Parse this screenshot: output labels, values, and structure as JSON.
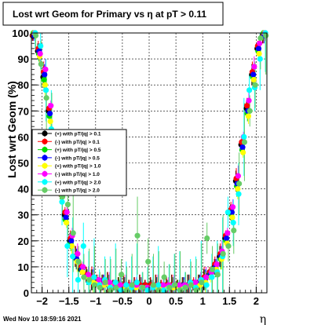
{
  "timestamp": "Wed Nov 10 18:59:16 2021",
  "chart_data": {
    "type": "scatter",
    "title": "Lost wrt Geom for Primary vs   η at pT > 0.11",
    "xlabel": "η",
    "ylabel": "Lost wrt Geom (%)",
    "xlim": [
      -2.2,
      2.2
    ],
    "ylim": [
      0,
      100
    ],
    "grid": true,
    "legend_position": "left-middle",
    "x_ticks": [
      -2,
      -1.5,
      -1,
      -0.5,
      0,
      0.5,
      1,
      1.5,
      2
    ],
    "x_tick_labels": [
      "−2",
      "−1.5",
      "−1",
      "−0.5",
      "0",
      "0.5",
      "1",
      "1.5",
      "2"
    ],
    "y_ticks": [
      0,
      10,
      20,
      30,
      40,
      50,
      60,
      70,
      80,
      90,
      100
    ],
    "y_tick_labels": [
      "0",
      "10",
      "20",
      "30",
      "40",
      "50",
      "60",
      "70",
      "80",
      "90",
      "100"
    ],
    "series": [
      {
        "name": "(+) with pT/|q| > 0.1",
        "color": "#000000",
        "marker": "circle",
        "x": [
          -2.15,
          -2.05,
          -1.95,
          -1.85,
          -1.75,
          -1.65,
          -1.55,
          -1.45,
          -1.35,
          -1.25,
          -1.15,
          -1.05,
          -0.95,
          -0.85,
          -0.75,
          -0.65,
          -0.55,
          -0.45,
          -0.35,
          -0.25,
          -0.15,
          -0.05,
          0.05,
          0.15,
          0.25,
          0.35,
          0.45,
          0.55,
          0.65,
          0.75,
          0.85,
          0.95,
          1.05,
          1.15,
          1.25,
          1.35,
          1.45,
          1.55,
          1.65,
          1.75,
          1.85,
          1.95,
          2.05,
          2.15
        ],
        "y": [
          99,
          93,
          83,
          70,
          55,
          41,
          30,
          20,
          14,
          9,
          7,
          5,
          5,
          4,
          4,
          3,
          3,
          3,
          3,
          3,
          3,
          3,
          3,
          3,
          3,
          3,
          3,
          3,
          3,
          3,
          3,
          4,
          5,
          7,
          10,
          14,
          21,
          31,
          43,
          57,
          71,
          84,
          94,
          99
        ]
      },
      {
        "name": "(-) with pT/|q| > 0.1",
        "color": "#ff0000",
        "marker": "circle",
        "x": [
          -2.15,
          -2.05,
          -1.95,
          -1.85,
          -1.75,
          -1.65,
          -1.55,
          -1.45,
          -1.35,
          -1.25,
          -1.15,
          -1.05,
          -0.95,
          -0.85,
          -0.75,
          -0.65,
          -0.55,
          -0.45,
          -0.35,
          -0.25,
          -0.15,
          -0.05,
          0.05,
          0.15,
          0.25,
          0.35,
          0.45,
          0.55,
          0.65,
          0.75,
          0.85,
          0.95,
          1.05,
          1.15,
          1.25,
          1.35,
          1.45,
          1.55,
          1.65,
          1.75,
          1.85,
          1.95,
          2.05,
          2.15
        ],
        "y": [
          99,
          94,
          85,
          71,
          56,
          42,
          31,
          21,
          14,
          10,
          7,
          6,
          5,
          4,
          4,
          3,
          3,
          3,
          3,
          3,
          3,
          3,
          3,
          3,
          3,
          3,
          3,
          3,
          3,
          3,
          4,
          4,
          6,
          8,
          11,
          15,
          22,
          32,
          44,
          58,
          72,
          85,
          95,
          99
        ]
      },
      {
        "name": "(+) with pT/|q| > 0.5",
        "color": "#00dd00",
        "marker": "circle",
        "x": [
          -2.15,
          -2.05,
          -1.95,
          -1.85,
          -1.75,
          -1.65,
          -1.55,
          -1.45,
          -1.35,
          -1.25,
          -1.15,
          -1.05,
          -0.95,
          -0.85,
          -0.75,
          -0.65,
          -0.55,
          -0.45,
          -0.35,
          -0.25,
          -0.15,
          -0.05,
          0.05,
          0.15,
          0.25,
          0.35,
          0.45,
          0.55,
          0.65,
          0.75,
          0.85,
          0.95,
          1.05,
          1.15,
          1.25,
          1.35,
          1.45,
          1.55,
          1.65,
          1.75,
          1.85,
          1.95,
          2.05,
          2.15
        ],
        "y": [
          100,
          92,
          82,
          68,
          53,
          40,
          28,
          19,
          13,
          9,
          6,
          5,
          4,
          4,
          3,
          3,
          3,
          2,
          2,
          2,
          2,
          2,
          2,
          2,
          2,
          2,
          2,
          3,
          3,
          3,
          3,
          4,
          5,
          7,
          9,
          13,
          20,
          30,
          41,
          55,
          69,
          83,
          93,
          100
        ]
      },
      {
        "name": "(-) with pT/|q| > 0.5",
        "color": "#0000ff",
        "marker": "circle",
        "x": [
          -2.15,
          -2.05,
          -1.95,
          -1.85,
          -1.75,
          -1.65,
          -1.55,
          -1.45,
          -1.35,
          -1.25,
          -1.15,
          -1.05,
          -0.95,
          -0.85,
          -0.75,
          -0.65,
          -0.55,
          -0.45,
          -0.35,
          -0.25,
          -0.15,
          -0.05,
          0.05,
          0.15,
          0.25,
          0.35,
          0.45,
          0.55,
          0.65,
          0.75,
          0.85,
          0.95,
          1.05,
          1.15,
          1.25,
          1.35,
          1.45,
          1.55,
          1.65,
          1.75,
          1.85,
          1.95,
          2.05,
          2.15
        ],
        "y": [
          99,
          93,
          84,
          69,
          54,
          41,
          29,
          20,
          13,
          9,
          6,
          5,
          4,
          4,
          3,
          3,
          2,
          2,
          2,
          2,
          2,
          2,
          2,
          2,
          2,
          2,
          2,
          2,
          3,
          3,
          3,
          4,
          5,
          7,
          10,
          14,
          21,
          31,
          42,
          56,
          70,
          84,
          94,
          99
        ]
      },
      {
        "name": "(+) with pT/|q| > 1.0",
        "color": "#ffff00",
        "marker": "circle",
        "x": [
          -2.15,
          -2.05,
          -1.95,
          -1.85,
          -1.75,
          -1.65,
          -1.55,
          -1.45,
          -1.35,
          -1.25,
          -1.15,
          -1.05,
          -0.95,
          -0.85,
          -0.75,
          -0.65,
          -0.55,
          -0.45,
          -0.35,
          -0.25,
          -0.15,
          -0.05,
          0.05,
          0.15,
          0.25,
          0.35,
          0.45,
          0.55,
          0.65,
          0.75,
          0.85,
          0.95,
          1.05,
          1.15,
          1.25,
          1.35,
          1.45,
          1.55,
          1.65,
          1.75,
          1.85,
          1.95,
          2.05,
          2.15
        ],
        "y": [
          100,
          91,
          80,
          66,
          51,
          38,
          27,
          18,
          12,
          8,
          6,
          4,
          4,
          3,
          3,
          3,
          2,
          2,
          2,
          2,
          2,
          2,
          2,
          2,
          2,
          2,
          2,
          2,
          2,
          3,
          3,
          3,
          4,
          6,
          9,
          13,
          19,
          29,
          40,
          54,
          68,
          82,
          92,
          100
        ]
      },
      {
        "name": "(-) with pT/|q| > 1.0",
        "color": "#ff00ff",
        "marker": "circle",
        "x": [
          -2.15,
          -2.05,
          -1.95,
          -1.85,
          -1.75,
          -1.65,
          -1.55,
          -1.45,
          -1.35,
          -1.25,
          -1.15,
          -1.05,
          -0.95,
          -0.85,
          -0.75,
          -0.65,
          -0.55,
          -0.45,
          -0.35,
          -0.25,
          -0.15,
          -0.05,
          0.05,
          0.15,
          0.25,
          0.35,
          0.45,
          0.55,
          0.65,
          0.75,
          0.85,
          0.95,
          1.05,
          1.15,
          1.25,
          1.35,
          1.45,
          1.55,
          1.65,
          1.75,
          1.85,
          1.95,
          2.05,
          2.15
        ],
        "y": [
          100,
          92,
          86,
          72,
          57,
          43,
          31,
          22,
          15,
          10,
          7,
          6,
          5,
          4,
          4,
          3,
          3,
          3,
          3,
          3,
          2,
          2,
          2,
          3,
          3,
          3,
          3,
          3,
          3,
          3,
          4,
          5,
          6,
          8,
          11,
          16,
          23,
          33,
          45,
          60,
          74,
          87,
          96,
          100
        ]
      },
      {
        "name": "(+) with pT/|q| > 2.0",
        "color": "#00ffff",
        "marker": "circle",
        "x": [
          -2.15,
          -2.05,
          -1.95,
          -1.85,
          -1.75,
          -1.65,
          -1.55,
          -1.45,
          -1.35,
          -1.25,
          -1.15,
          -1.05,
          -0.95,
          -0.85,
          -0.75,
          -0.65,
          -0.55,
          -0.45,
          -0.35,
          -0.25,
          -0.15,
          -0.05,
          0.05,
          0.15,
          0.25,
          0.35,
          0.45,
          0.55,
          0.65,
          0.75,
          0.85,
          0.95,
          1.05,
          1.15,
          1.25,
          1.35,
          1.45,
          1.55,
          1.65,
          1.75,
          1.85,
          1.95,
          2.05,
          2.15
        ],
        "y": [
          100,
          95,
          78,
          63,
          48,
          35,
          18,
          14,
          5,
          18,
          4,
          6,
          3,
          5,
          2,
          4,
          1,
          3,
          2,
          4,
          2,
          1,
          2,
          3,
          1,
          2,
          3,
          1,
          2,
          4,
          2,
          5,
          3,
          6,
          8,
          14,
          31,
          27,
          38,
          60,
          78,
          79,
          90,
          100
        ]
      },
      {
        "name": "(-) with pT/|q| > 2.0",
        "color": "#66cc66",
        "marker": "circle",
        "x": [
          -2.15,
          -2.05,
          -1.95,
          -1.85,
          -1.75,
          -1.65,
          -1.55,
          -1.45,
          -1.35,
          -1.25,
          -1.15,
          -1.05,
          -0.95,
          -0.85,
          -0.75,
          -0.65,
          -0.55,
          -0.45,
          -0.35,
          -0.25,
          -0.15,
          -0.05,
          0.05,
          0.15,
          0.25,
          0.35,
          0.45,
          0.55,
          0.65,
          0.75,
          0.85,
          0.95,
          1.05,
          1.15,
          1.25,
          1.35,
          1.45,
          1.55,
          1.65,
          1.75,
          1.85,
          1.95,
          2.05,
          2.15
        ],
        "y": [
          99,
          88,
          75,
          62,
          50,
          37,
          34,
          23,
          12,
          6,
          5,
          3,
          2,
          4,
          1,
          2,
          7,
          1,
          3,
          22,
          2,
          12,
          3,
          1,
          6,
          2,
          3,
          1,
          2,
          3,
          1,
          4,
          21,
          9,
          7,
          15,
          18,
          24,
          42,
          58,
          70,
          80,
          98,
          99
        ]
      }
    ]
  }
}
